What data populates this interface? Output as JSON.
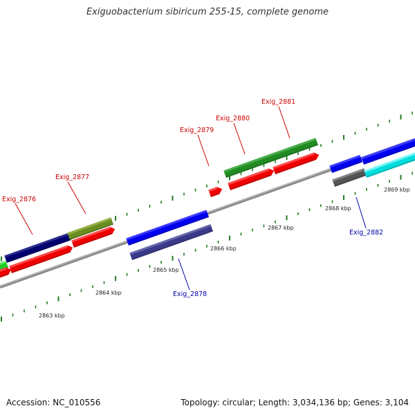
{
  "title": "Exiguobacterium sibiricum 255-15, complete genome",
  "footer": {
    "accession": "Accession: NC_010556",
    "summary": "Topology: circular; Length: 3,034,136 bp; Genes: 3,104"
  },
  "colors": {
    "background": "#ffffff",
    "backbone": "#8a8a8a",
    "tick": "#1f7a1f",
    "forward_label": "#cc0000",
    "reverse_label": "#0000aa"
  },
  "scale_labels": [
    {
      "text": "2863 kbp"
    },
    {
      "text": "2864 kbp"
    },
    {
      "text": "2865 kbp"
    },
    {
      "text": "2866 kbp"
    },
    {
      "text": "2867 kbp"
    },
    {
      "text": "2868 kbp"
    },
    {
      "text": "2869 kbp"
    }
  ],
  "gene_labels": [
    {
      "text": "Exig_2876",
      "strand": "forward"
    },
    {
      "text": "Exig_2877",
      "strand": "forward"
    },
    {
      "text": "Exig_2878",
      "strand": "reverse"
    },
    {
      "text": "Exig_2879",
      "strand": "forward"
    },
    {
      "text": "Exig_2880",
      "strand": "forward"
    },
    {
      "text": "Exig_2881",
      "strand": "forward"
    },
    {
      "text": "Exig_2882",
      "strand": "reverse"
    }
  ]
}
